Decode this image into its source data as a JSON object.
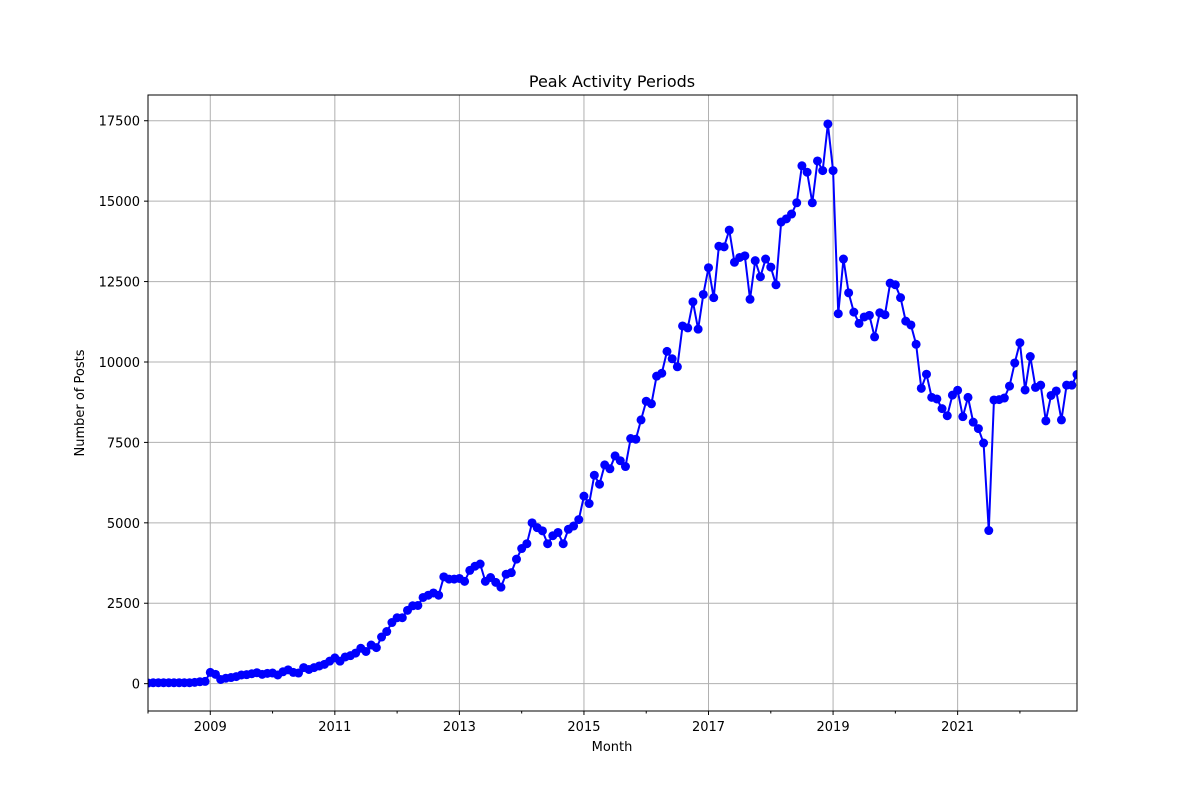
{
  "chart_data": {
    "type": "line",
    "title": "Peak Activity Periods",
    "xlabel": "Month",
    "ylabel": "Number of Posts",
    "marker": "circle",
    "grid": true,
    "colors": {
      "series": "#0000ff",
      "grid": "#b0b0b0",
      "axis": "#000000"
    },
    "x_start": "2008-01",
    "x_step": "month",
    "xlim": [
      "2008-01",
      "2022-12"
    ],
    "ylim": [
      -850,
      18300
    ],
    "x_ticks": [
      "2009",
      "2011",
      "2013",
      "2015",
      "2017",
      "2019",
      "2021"
    ],
    "y_ticks": [
      0,
      2500,
      5000,
      7500,
      10000,
      12500,
      15000,
      17500
    ],
    "y_tick_labels": [
      "0",
      "2500",
      "5000",
      "7500",
      "10000",
      "12500",
      "15000",
      "17500"
    ],
    "series": [
      {
        "values": [
          20,
          30,
          30,
          30,
          30,
          30,
          30,
          30,
          30,
          40,
          60,
          70,
          350,
          290,
          130,
          170,
          190,
          220,
          270,
          280,
          310,
          340,
          290,
          320,
          330,
          270,
          370,
          430,
          350,
          330,
          500,
          440,
          500,
          550,
          600,
          700,
          800,
          700,
          830,
          870,
          950,
          1100,
          1000,
          1200,
          1120,
          1450,
          1620,
          1900,
          2050,
          2050,
          2280,
          2420,
          2430,
          2680,
          2750,
          2820,
          2750,
          3320,
          3250,
          3250,
          3270,
          3180,
          3520,
          3650,
          3720,
          3180,
          3300,
          3150,
          3000,
          3400,
          3450,
          3870,
          4200,
          4350,
          5000,
          4850,
          4750,
          4350,
          4600,
          4700,
          4350,
          4800,
          4900,
          5100,
          5830,
          5600,
          6480,
          6200,
          6800,
          6680,
          7080,
          6930,
          6750,
          7620,
          7600,
          8200,
          8780,
          8700,
          9560,
          9650,
          10330,
          10100,
          9850,
          11120,
          11060,
          11870,
          11020,
          12100,
          12930,
          12000,
          13600,
          13580,
          14100,
          13100,
          13250,
          13300,
          11950,
          13150,
          12650,
          13200,
          12950,
          12400,
          14350,
          14450,
          14600,
          14950,
          16100,
          15900,
          14950,
          16250,
          15950,
          17400,
          15950,
          11500,
          13200,
          12150,
          11550,
          11200,
          11400,
          11450,
          10780,
          11530,
          11470,
          12450,
          12400,
          12000,
          11270,
          11150,
          10550,
          9180,
          9620,
          8900,
          8850,
          8550,
          8330,
          8970,
          9120,
          8300,
          8900,
          8130,
          7930,
          7480,
          4760,
          8820,
          8830,
          8880,
          9250,
          9970,
          10600,
          9130,
          10170,
          9210,
          9280,
          8170,
          8960,
          9100,
          8200,
          9280,
          9280,
          9610
        ]
      }
    ]
  }
}
